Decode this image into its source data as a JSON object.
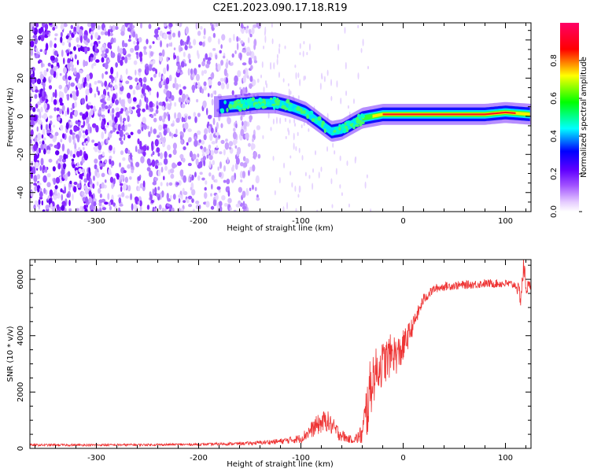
{
  "title": "C2E1.2023.090.17.18.R19",
  "chart_data": [
    {
      "type": "heatmap",
      "xlabel": "Height of straight line (km)",
      "ylabel": "Frequency (Hz)",
      "xlim": [
        -365,
        125
      ],
      "ylim": [
        -50,
        49
      ],
      "xticks": [
        -300,
        -200,
        -100,
        0,
        100
      ],
      "yticks": [
        -40,
        -20,
        0,
        20,
        40
      ],
      "grid": false,
      "colorbar": {
        "label": "Normalized spectral amplitude",
        "range": [
          0,
          1
        ],
        "ticks": [
          0.0,
          0.2,
          0.4,
          0.6,
          0.8
        ],
        "colors": [
          "#ffffff",
          "#e6ccff",
          "#a050ff",
          "#6000ff",
          "#0000ff",
          "#00ffff",
          "#00ff00",
          "#ffff00",
          "#ff0000",
          "#ff0066"
        ]
      },
      "ridge": {
        "x": [
          -180,
          -160,
          -140,
          -125,
          -110,
          -95,
          -80,
          -70,
          -60,
          -50,
          -40,
          -30,
          -20,
          -10,
          0,
          20,
          50,
          80,
          100,
          125
        ],
        "y": [
          5,
          6,
          7,
          7,
          5,
          2,
          -4,
          -8,
          -7,
          -4,
          -1,
          0,
          1,
          1,
          1,
          1,
          1,
          1,
          2,
          1
        ]
      }
    },
    {
      "type": "line",
      "xlabel": "Height of straight line (km)",
      "ylabel": "SNR (10 * v/v)",
      "xlim": [
        -365,
        125
      ],
      "ylim": [
        0,
        6700
      ],
      "xticks": [
        -300,
        -200,
        -100,
        0,
        100
      ],
      "yticks": [
        0,
        2000,
        4000,
        6000
      ],
      "grid": false,
      "color": "#ee3333",
      "series": [
        {
          "x": [
            -365,
            -300,
            -200,
            -150,
            -120,
            -100,
            -85,
            -75,
            -65,
            -55,
            -48,
            -40,
            -35,
            -30,
            -25,
            -20,
            -15,
            -10,
            -5,
            0,
            10,
            20,
            30,
            40,
            60,
            80,
            100,
            110,
            115,
            118,
            120,
            125
          ],
          "y": [
            120,
            120,
            140,
            180,
            250,
            350,
            800,
            1000,
            600,
            350,
            300,
            500,
            1500,
            2500,
            2800,
            3000,
            3200,
            3400,
            3300,
            3600,
            4400,
            5300,
            5650,
            5750,
            5800,
            5850,
            5850,
            5800,
            5400,
            6500,
            5700,
            5800
          ],
          "noise": [
            40,
            40,
            40,
            60,
            100,
            160,
            350,
            400,
            300,
            150,
            120,
            400,
            1200,
            1000,
            800,
            800,
            800,
            700,
            700,
            600,
            300,
            200,
            150,
            150,
            150,
            150,
            150,
            150,
            400,
            500,
            300,
            150
          ]
        }
      ]
    }
  ]
}
